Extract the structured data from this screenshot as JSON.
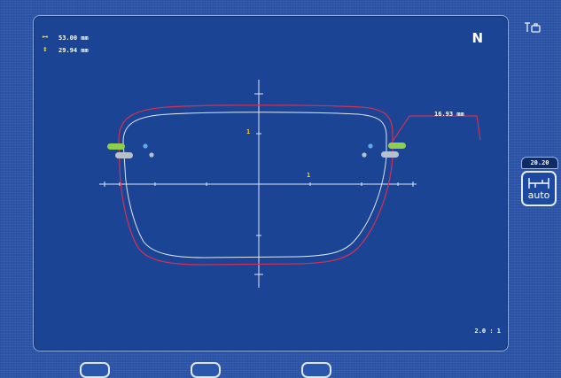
{
  "measurements": {
    "width_value": "53.00 mm",
    "height_value": "29.94 mm",
    "bridge_value": "16.93 mm"
  },
  "view": {
    "side_letter": "N"
  },
  "axes": {
    "y_marker": "1",
    "x_marker": "1"
  },
  "scale": {
    "label": "2.0 : 1"
  },
  "control": {
    "value": "20.20",
    "button_label": "auto"
  },
  "icons": {
    "width": "horizontal-dimension-icon",
    "height": "vertical-dimension-icon",
    "corner": "tool-camera-icon",
    "auto": "bevel-auto-icon"
  },
  "colors": {
    "frame_outline": "#c8325a",
    "lens_outline": "#dfe7f6",
    "hole_green": "#8fcf4e",
    "hole_gray": "#b7c1cc",
    "dot_blue": "#5fa9e6",
    "accent_yellow": "#f5d12d",
    "panel": "#1b4594",
    "background": "#2c55a9"
  },
  "bottom_tabs": [
    {
      "name": "tab-1"
    },
    {
      "name": "tab-2"
    },
    {
      "name": "tab-3"
    }
  ]
}
